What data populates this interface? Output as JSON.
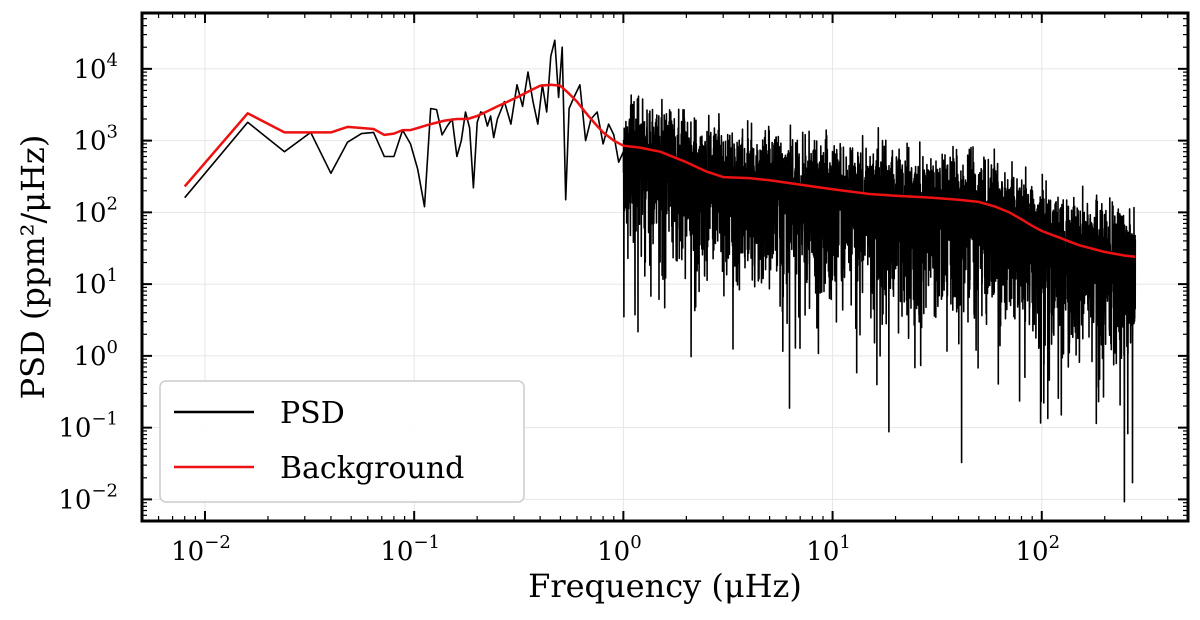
{
  "chart_data": {
    "type": "line",
    "title": "",
    "xlabel": "Frequency (μHz)",
    "ylabel": "PSD (ppm²/μHz)",
    "xscale": "log",
    "yscale": "log",
    "xlim": [
      0.005,
      500
    ],
    "ylim": [
      0.005,
      60000
    ],
    "grid": true,
    "legend_position": "bottom-left",
    "x_ticks": [
      {
        "base": "10",
        "exp": "−2",
        "value": 0.01
      },
      {
        "base": "10",
        "exp": "−1",
        "value": 0.1
      },
      {
        "base": "10",
        "exp": "0",
        "value": 1
      },
      {
        "base": "10",
        "exp": "1",
        "value": 10
      },
      {
        "base": "10",
        "exp": "2",
        "value": 100
      }
    ],
    "y_ticks": [
      {
        "base": "10",
        "exp": "−2",
        "value": 0.01
      },
      {
        "base": "10",
        "exp": "−1",
        "value": 0.1
      },
      {
        "base": "10",
        "exp": "0",
        "value": 1
      },
      {
        "base": "10",
        "exp": "1",
        "value": 10
      },
      {
        "base": "10",
        "exp": "2",
        "value": 100
      },
      {
        "base": "10",
        "exp": "3",
        "value": 1000
      },
      {
        "base": "10",
        "exp": "4",
        "value": 10000
      }
    ],
    "series": [
      {
        "name": "PSD",
        "color": "#000000",
        "note": "dense noisy power spectrum; low-frequency points listed, above ~1 μHz values scatter widely around the background",
        "x": [
          0.008,
          0.016,
          0.024,
          0.032,
          0.04,
          0.048,
          0.056,
          0.064,
          0.072,
          0.08,
          0.088,
          0.096,
          0.104,
          0.112,
          0.12,
          0.128,
          0.136,
          0.144,
          0.152,
          0.16,
          0.168,
          0.176,
          0.184,
          0.192,
          0.2,
          0.208,
          0.216,
          0.224,
          0.232,
          0.24,
          0.25,
          0.27,
          0.29,
          0.31,
          0.33,
          0.35,
          0.37,
          0.39,
          0.41,
          0.43,
          0.45,
          0.47,
          0.49,
          0.51,
          0.53,
          0.55,
          0.58,
          0.62,
          0.66,
          0.7,
          0.75,
          0.8,
          0.85,
          0.9,
          0.95,
          1.0
        ],
        "values": [
          160,
          1800,
          700,
          1300,
          350,
          950,
          1250,
          1300,
          600,
          600,
          1400,
          900,
          400,
          120,
          2800,
          2700,
          1200,
          1600,
          2000,
          600,
          1000,
          2500,
          1500,
          220,
          1800,
          2500,
          2400,
          1600,
          2200,
          1100,
          2000,
          3500,
          1700,
          6000,
          3000,
          9000,
          3500,
          1700,
          6000,
          2500,
          15000,
          25000,
          4000,
          20000,
          150,
          2800,
          4000,
          6000,
          1000,
          2000,
          2500,
          900,
          1700,
          1200,
          500,
          700
        ]
      },
      {
        "name": "Background",
        "color": "#ee1111",
        "x": [
          0.008,
          0.016,
          0.024,
          0.032,
          0.04,
          0.048,
          0.056,
          0.064,
          0.072,
          0.08,
          0.088,
          0.096,
          0.104,
          0.12,
          0.14,
          0.16,
          0.18,
          0.2,
          0.22,
          0.25,
          0.28,
          0.32,
          0.36,
          0.4,
          0.45,
          0.5,
          0.55,
          0.6,
          0.65,
          0.7,
          0.75,
          0.8,
          0.9,
          1.0,
          1.2,
          1.5,
          2,
          2.5,
          3,
          4,
          5,
          6,
          8,
          10,
          15,
          20,
          30,
          40,
          50,
          60,
          70,
          80,
          90,
          100,
          120,
          150,
          200,
          250,
          280
        ],
        "values": [
          230,
          2400,
          1300,
          1300,
          1300,
          1550,
          1500,
          1450,
          1200,
          1250,
          1400,
          1400,
          1500,
          1700,
          1900,
          2000,
          2000,
          2200,
          2500,
          3000,
          3500,
          4200,
          5000,
          5800,
          6000,
          5800,
          4500,
          3500,
          2600,
          2000,
          1600,
          1300,
          1000,
          850,
          800,
          700,
          500,
          370,
          310,
          300,
          280,
          260,
          230,
          210,
          180,
          170,
          160,
          150,
          140,
          120,
          100,
          80,
          65,
          55,
          45,
          35,
          28,
          25,
          24
        ]
      }
    ]
  }
}
